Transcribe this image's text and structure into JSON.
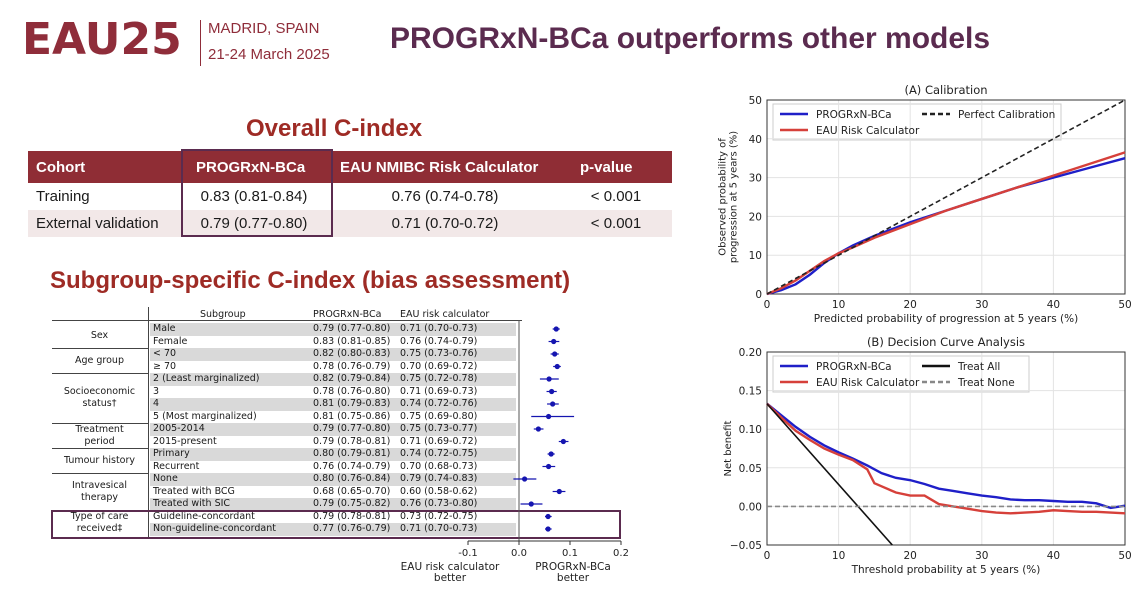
{
  "header": {
    "logo": "EAU25",
    "location": "MADRID, SPAIN",
    "dates": "21-24 March 2025",
    "title": "PROGRxN-BCa outperforms other models"
  },
  "overall": {
    "title": "Overall C-index",
    "columns": [
      "Cohort",
      "PROGRxN-BCa",
      "EAU NMIBC Risk Calculator",
      "p-value"
    ],
    "rows": [
      {
        "cohort": "Training",
        "progrxn": "0.83 (0.81-0.84)",
        "eau": "0.76 (0.74-0.78)",
        "p": "< 0.001"
      },
      {
        "cohort": "External validation",
        "progrxn": "0.79 (0.77-0.80)",
        "eau": "0.71 (0.70-0.72)",
        "p": "< 0.001"
      }
    ]
  },
  "subgroup": {
    "title": "Subgroup-specific C-index (bias assessment)",
    "col_subgroup": "Subgroup",
    "col_progrxn": "PROGRxN-BCa",
    "col_eau": "EAU risk calculator",
    "groups": [
      {
        "name": "Sex",
        "rows": [
          0,
          1
        ]
      },
      {
        "name": "Age group",
        "rows": [
          2,
          3
        ]
      },
      {
        "name": "Socioeconomic\nstatus†",
        "rows": [
          4,
          5,
          6,
          7
        ]
      },
      {
        "name": "Treatment\nperiod",
        "rows": [
          8,
          9
        ]
      },
      {
        "name": "Tumour history",
        "rows": [
          10,
          11
        ]
      },
      {
        "name": "Intravesical\ntherapy",
        "rows": [
          12,
          13,
          14
        ]
      },
      {
        "name": "Type of care\nreceived‡",
        "rows": [
          15,
          16
        ]
      }
    ],
    "rows": [
      {
        "label": "Male",
        "progrxn": "0.79 (0.77-0.80)",
        "eau": "0.71 (0.70-0.73)"
      },
      {
        "label": "Female",
        "progrxn": "0.83 (0.81-0.85)",
        "eau": "0.76 (0.74-0.79)"
      },
      {
        "label": "< 70",
        "progrxn": "0.82 (0.80-0.83)",
        "eau": "0.75 (0.73-0.76)"
      },
      {
        "label": "≥ 70",
        "progrxn": "0.78 (0.76-0.79)",
        "eau": "0.70 (0.69-0.72)"
      },
      {
        "label": "2 (Least marginalized)",
        "progrxn": "0.82 (0.79-0.84)",
        "eau": "0.75 (0.72-0.78)"
      },
      {
        "label": "3",
        "progrxn": "0.78 (0.76-0.80)",
        "eau": "0.71 (0.69-0.73)"
      },
      {
        "label": "4",
        "progrxn": "0.81 (0.79-0.83)",
        "eau": "0.74 (0.72-0.76)"
      },
      {
        "label": "5 (Most marginalized)",
        "progrxn": "0.81 (0.75-0.86)",
        "eau": "0.75 (0.69-0.80)"
      },
      {
        "label": "2005-2014",
        "progrxn": "0.79 (0.77-0.80)",
        "eau": "0.75 (0.73-0.77)"
      },
      {
        "label": "2015-present",
        "progrxn": "0.79 (0.78-0.81)",
        "eau": "0.71 (0.69-0.72)"
      },
      {
        "label": "Primary",
        "progrxn": "0.80 (0.79-0.81)",
        "eau": "0.74 (0.72-0.75)"
      },
      {
        "label": "Recurrent",
        "progrxn": "0.76 (0.74-0.79)",
        "eau": "0.70 (0.68-0.73)"
      },
      {
        "label": "None",
        "progrxn": "0.80 (0.76-0.84)",
        "eau": "0.79 (0.74-0.83)"
      },
      {
        "label": "Treated with BCG",
        "progrxn": "0.68 (0.65-0.70)",
        "eau": "0.60 (0.58-0.62)"
      },
      {
        "label": "Treated with SIC",
        "progrxn": "0.79 (0.75-0.82)",
        "eau": "0.76 (0.73-0.80)"
      },
      {
        "label": "Guideline-concordant",
        "progrxn": "0.79 (0.78-0.81)",
        "eau": "0.73 (0.72-0.75)"
      },
      {
        "label": "Non-guideline-concordant",
        "progrxn": "0.77 (0.76-0.79)",
        "eau": "0.71 (0.70-0.73)"
      }
    ],
    "forest": {
      "x_ticks": [
        "-0.1",
        "0.0",
        "0.1",
        "0.2"
      ],
      "left_label": "EAU risk calculator\nbetter",
      "right_label": "PROGRxN-BCa\nbetter"
    }
  },
  "chart_data": [
    {
      "type": "forest",
      "xlim": [
        -0.1,
        0.2
      ],
      "x_ticks": [
        -0.1,
        0.0,
        0.1,
        0.2
      ],
      "point_color": "#1515b0",
      "points": [
        {
          "estimate": 0.073,
          "low": 0.066,
          "high": 0.08
        },
        {
          "estimate": 0.068,
          "low": 0.058,
          "high": 0.079
        },
        {
          "estimate": 0.07,
          "low": 0.062,
          "high": 0.078
        },
        {
          "estimate": 0.075,
          "low": 0.067,
          "high": 0.082
        },
        {
          "estimate": 0.059,
          "low": 0.041,
          "high": 0.078
        },
        {
          "estimate": 0.064,
          "low": 0.054,
          "high": 0.074
        },
        {
          "estimate": 0.066,
          "low": 0.055,
          "high": 0.078
        },
        {
          "estimate": 0.058,
          "low": 0.024,
          "high": 0.108
        },
        {
          "estimate": 0.038,
          "low": 0.029,
          "high": 0.048
        },
        {
          "estimate": 0.087,
          "low": 0.078,
          "high": 0.097
        },
        {
          "estimate": 0.063,
          "low": 0.056,
          "high": 0.07
        },
        {
          "estimate": 0.058,
          "low": 0.046,
          "high": 0.071
        },
        {
          "estimate": 0.011,
          "low": -0.011,
          "high": 0.034
        },
        {
          "estimate": 0.079,
          "low": 0.066,
          "high": 0.091
        },
        {
          "estimate": 0.024,
          "low": 0.003,
          "high": 0.046
        },
        {
          "estimate": 0.057,
          "low": 0.051,
          "high": 0.064
        },
        {
          "estimate": 0.057,
          "low": 0.051,
          "high": 0.064
        }
      ]
    },
    {
      "type": "line",
      "title": "(A) Calibration",
      "xlabel": "Predicted probability of progression at 5 years (%)",
      "ylabel": "Observed probability of\nprogression at 5 years (%)",
      "xlim": [
        0,
        50
      ],
      "ylim": [
        0,
        50
      ],
      "x_ticks": [
        0,
        10,
        20,
        30,
        40,
        50
      ],
      "y_ticks": [
        0,
        10,
        20,
        30,
        40,
        50
      ],
      "grid": true,
      "legend": "top-left",
      "series": [
        {
          "name": "PROGRxN-BCa",
          "color": "#1f1fc8",
          "style": "solid",
          "x": [
            0,
            2,
            4,
            6,
            8,
            10,
            12,
            15,
            20,
            25,
            30,
            35,
            40,
            45,
            50
          ],
          "y": [
            0,
            1,
            2.5,
            5,
            8,
            10.5,
            12.5,
            15,
            18.5,
            21.5,
            24.5,
            27.5,
            30,
            32.5,
            35
          ]
        },
        {
          "name": "EAU Risk Calculator",
          "color": "#d6403a",
          "style": "solid",
          "x": [
            0,
            2,
            4,
            6,
            8,
            10,
            12,
            15,
            20,
            25,
            30,
            35,
            40,
            45,
            50
          ],
          "y": [
            0,
            1.5,
            3.5,
            6,
            8.5,
            10.5,
            12,
            14.5,
            18,
            21.5,
            24.5,
            27.5,
            30.5,
            33.5,
            36.5
          ]
        },
        {
          "name": "Perfect Calibration",
          "color": "#222222",
          "style": "dashed",
          "x": [
            0,
            50
          ],
          "y": [
            0,
            50
          ]
        }
      ]
    },
    {
      "type": "line",
      "title": "(B) Decision Curve Analysis",
      "xlabel": "Threshold probability at 5 years (%)",
      "ylabel": "Net benefit",
      "xlim": [
        0,
        50
      ],
      "ylim": [
        -0.05,
        0.2
      ],
      "x_ticks": [
        0,
        10,
        20,
        30,
        40,
        50
      ],
      "y_ticks": [
        "−0.05",
        "0.00",
        "0.05",
        "0.10",
        "0.15",
        "0.20"
      ],
      "y_tick_values": [
        -0.05,
        0.0,
        0.05,
        0.1,
        0.15,
        0.2
      ],
      "grid": true,
      "legend": "top-left",
      "series": [
        {
          "name": "PROGRxN-BCa",
          "color": "#1f1fc8",
          "style": "solid",
          "x": [
            0,
            2,
            4,
            6,
            8,
            10,
            12,
            14,
            16,
            18,
            20,
            22,
            24,
            26,
            28,
            30,
            32,
            34,
            36,
            38,
            40,
            42,
            44,
            46,
            48,
            50
          ],
          "y": [
            0.133,
            0.118,
            0.103,
            0.09,
            0.079,
            0.07,
            0.062,
            0.053,
            0.043,
            0.037,
            0.034,
            0.029,
            0.023,
            0.02,
            0.017,
            0.014,
            0.012,
            0.009,
            0.008,
            0.008,
            0.007,
            0.006,
            0.006,
            0.004,
            -0.002,
            0.001
          ]
        },
        {
          "name": "EAU Risk Calculator",
          "color": "#d6403a",
          "style": "solid",
          "x": [
            0,
            2,
            4,
            6,
            8,
            10,
            12,
            14,
            15,
            16,
            18,
            20,
            22,
            24,
            26,
            28,
            30,
            32,
            34,
            36,
            38,
            40,
            42,
            44,
            46,
            48,
            50
          ],
          "y": [
            0.133,
            0.115,
            0.098,
            0.086,
            0.075,
            0.067,
            0.06,
            0.048,
            0.03,
            0.026,
            0.018,
            0.014,
            0.014,
            0.003,
            0.0,
            -0.003,
            -0.006,
            -0.008,
            -0.009,
            -0.008,
            -0.007,
            -0.005,
            -0.006,
            -0.007,
            -0.007,
            -0.008,
            -0.009
          ]
        },
        {
          "name": "Treat All",
          "color": "#111111",
          "style": "solid",
          "x": [
            0,
            17.5
          ],
          "y": [
            0.133,
            -0.05
          ]
        },
        {
          "name": "Treat None",
          "color": "#888888",
          "style": "dashed",
          "x": [
            0,
            50
          ],
          "y": [
            0,
            0
          ]
        }
      ]
    }
  ]
}
